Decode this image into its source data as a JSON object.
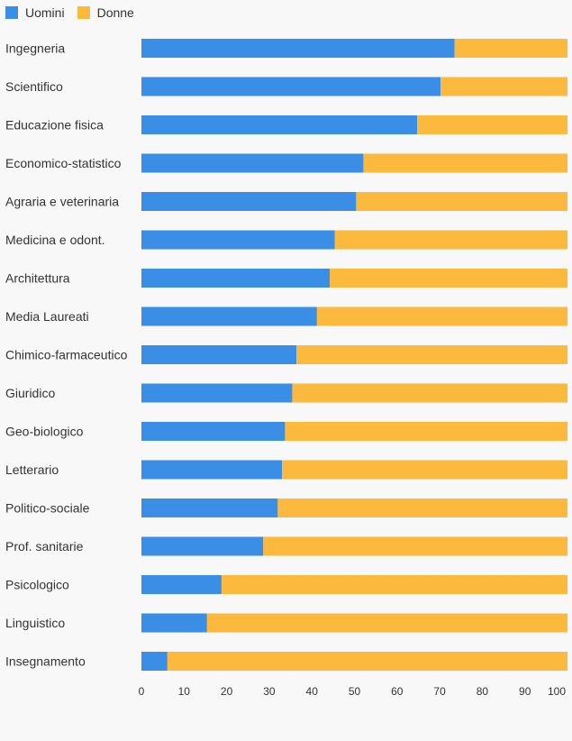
{
  "chart_data": {
    "type": "bar",
    "orientation": "horizontal",
    "stacked": true,
    "categories": [
      "Ingegneria",
      "Scientifico",
      "Educazione fisica",
      "Economico-statistico",
      "Agraria e veterinaria",
      "Medicina e odont.",
      "Architettura",
      "Media Laureati",
      "Chimico-farmaceutico",
      "Giuridico",
      "Geo-biologico",
      "Letterario",
      "Politico-sociale",
      "Prof. sanitarie",
      "Psicologico",
      "Linguistico",
      "Insegnamento"
    ],
    "series": [
      {
        "name": "Uomini",
        "color": "#3a8ee6",
        "values": [
          73.5,
          70.2,
          64.7,
          52.1,
          50.4,
          45.4,
          44.2,
          41.2,
          36.4,
          35.4,
          33.7,
          33.0,
          32.0,
          28.6,
          18.8,
          15.4,
          6.1
        ]
      },
      {
        "name": "Donne",
        "color": "#fbb93d",
        "values": [
          26.5,
          29.8,
          35.3,
          47.9,
          49.6,
          54.6,
          55.8,
          58.8,
          63.6,
          64.6,
          66.3,
          67.0,
          68.0,
          71.4,
          81.2,
          84.6,
          93.9
        ]
      }
    ],
    "x_ticks": [
      "0",
      "10",
      "20",
      "30",
      "40",
      "50",
      "60",
      "70",
      "80",
      "90",
      "100"
    ],
    "xlim": [
      0,
      100
    ],
    "grid": false,
    "legend_position": "top-left"
  }
}
